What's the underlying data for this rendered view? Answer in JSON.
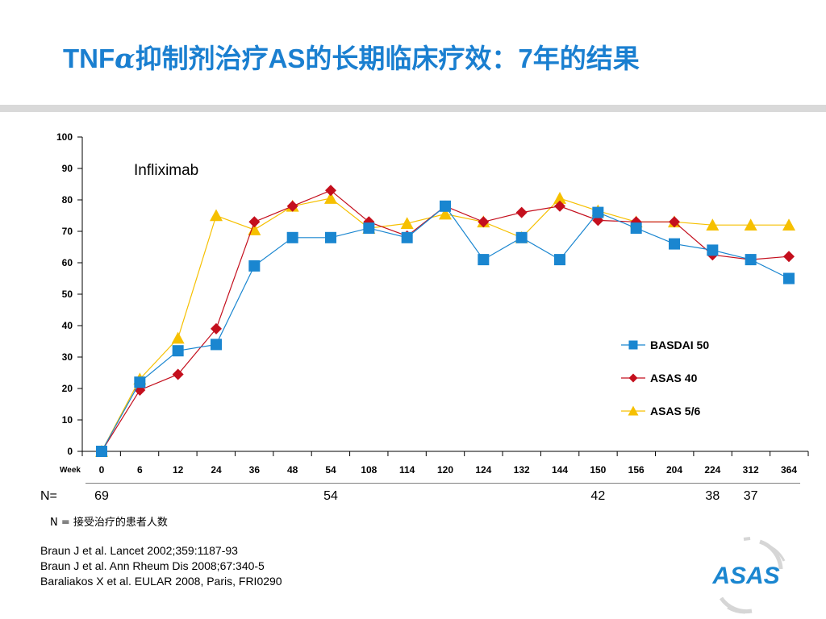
{
  "title": {
    "prefix": "TNF",
    "greek": "α",
    "part1": "抑制剂治疗",
    "part2": "AS",
    "part3": "的长期临床疗效：",
    "part4": "7",
    "part5": "年的结果"
  },
  "colors": {
    "title": "#1a7fd0",
    "basdai": "#1a86d0",
    "asas40": "#c40f1d",
    "asas56": "#f6c000"
  },
  "chart_data": {
    "type": "line",
    "annotation": "Infliximab",
    "xlabel": "Week",
    "categories": [
      "0",
      "6",
      "12",
      "24",
      "36",
      "48",
      "54",
      "108",
      "114",
      "120",
      "124",
      "132",
      "144",
      "150",
      "156",
      "204",
      "224",
      "312",
      "364"
    ],
    "ylim": [
      0,
      100
    ],
    "yticks": [
      0,
      10,
      20,
      30,
      40,
      50,
      60,
      70,
      80,
      90,
      100
    ],
    "grid": false,
    "legend_position": "right",
    "series": [
      {
        "name": "BASDAI 50",
        "marker": "square",
        "values": [
          0,
          22,
          32,
          34,
          59,
          68,
          68,
          71,
          68,
          78,
          61,
          68,
          61,
          76,
          71,
          66,
          64,
          61,
          55
        ]
      },
      {
        "name": "ASAS 40",
        "marker": "diamond",
        "values": [
          0,
          19.5,
          24.5,
          39,
          73,
          78,
          83,
          73,
          68.5,
          78,
          73,
          76,
          78,
          73.5,
          73,
          73,
          62.5,
          61,
          62
        ]
      },
      {
        "name": "ASAS 5/6",
        "marker": "triangle",
        "values": [
          0,
          23,
          36,
          75,
          70.5,
          78,
          80.5,
          71,
          72.5,
          75.5,
          73,
          68,
          80.5,
          76.5,
          73,
          73,
          72,
          72,
          72
        ]
      }
    ]
  },
  "n_row": {
    "label": "N=",
    "values": [
      {
        "category": "0",
        "text": "69"
      },
      {
        "category": "54",
        "text": "54"
      },
      {
        "category": "150",
        "text": "42"
      },
      {
        "category": "224",
        "text": "38"
      },
      {
        "category": "312",
        "text": "37"
      }
    ]
  },
  "n_note": "N = 接受治疗的患者人数",
  "references": [
    "Braun J et al. Lancet 2002;359:1187-93",
    "Braun J et al. Ann Rheum Dis 2008;67:340-5",
    "Baraliakos X et al. EULAR 2008, Paris, FRI0290"
  ],
  "logo": {
    "text": "ASAS",
    "color": "#1a86d0"
  }
}
